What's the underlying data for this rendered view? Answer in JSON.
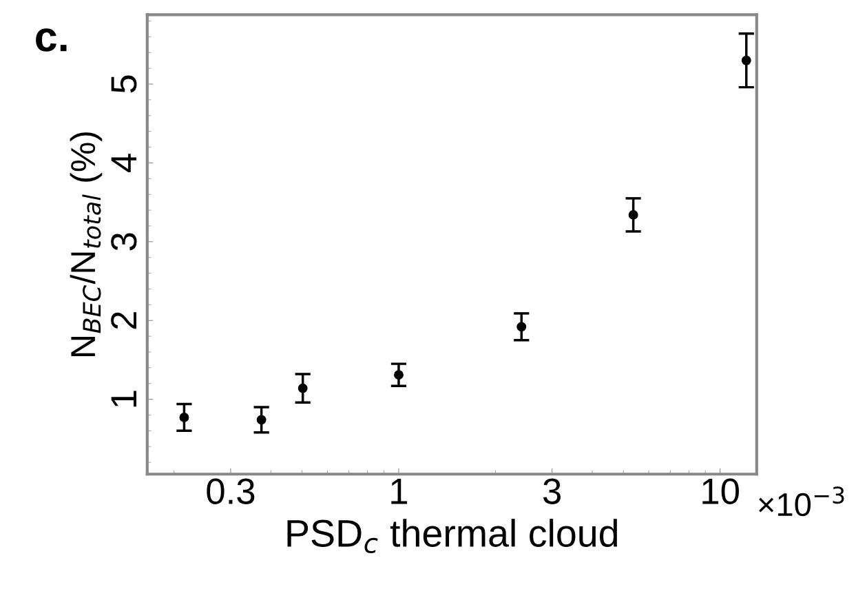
{
  "chart_data": {
    "type": "scatter",
    "xlabel": "PSD$_{c}$ thermal cloud",
    "ylabel": "N$_{BEC}$/N$_{total}$ (%)",
    "annotations": [
      "c.",
      "×10$^{−3}$"
    ],
    "log": "x",
    "marker": "circle",
    "grid": false,
    "legend": false,
    "xlim": [
      0.165,
      13
    ],
    "xticks": [
      0.3,
      1,
      3,
      10
    ],
    "ylim": [
      0.05,
      5.88
    ],
    "yticks": [
      1,
      2,
      3,
      4,
      5
    ],
    "series": [
      {
        "color": "#000000",
        "x": [
          0.215,
          0.374,
          0.503,
          1.0,
          2.41,
          5.37,
          12.07
        ],
        "values": [
          0.77,
          0.74,
          1.14,
          1.31,
          1.92,
          3.34,
          5.3
        ],
        "errors": [
          0.17,
          0.16,
          0.18,
          0.14,
          0.17,
          0.21,
          0.34
        ]
      }
    ]
  }
}
